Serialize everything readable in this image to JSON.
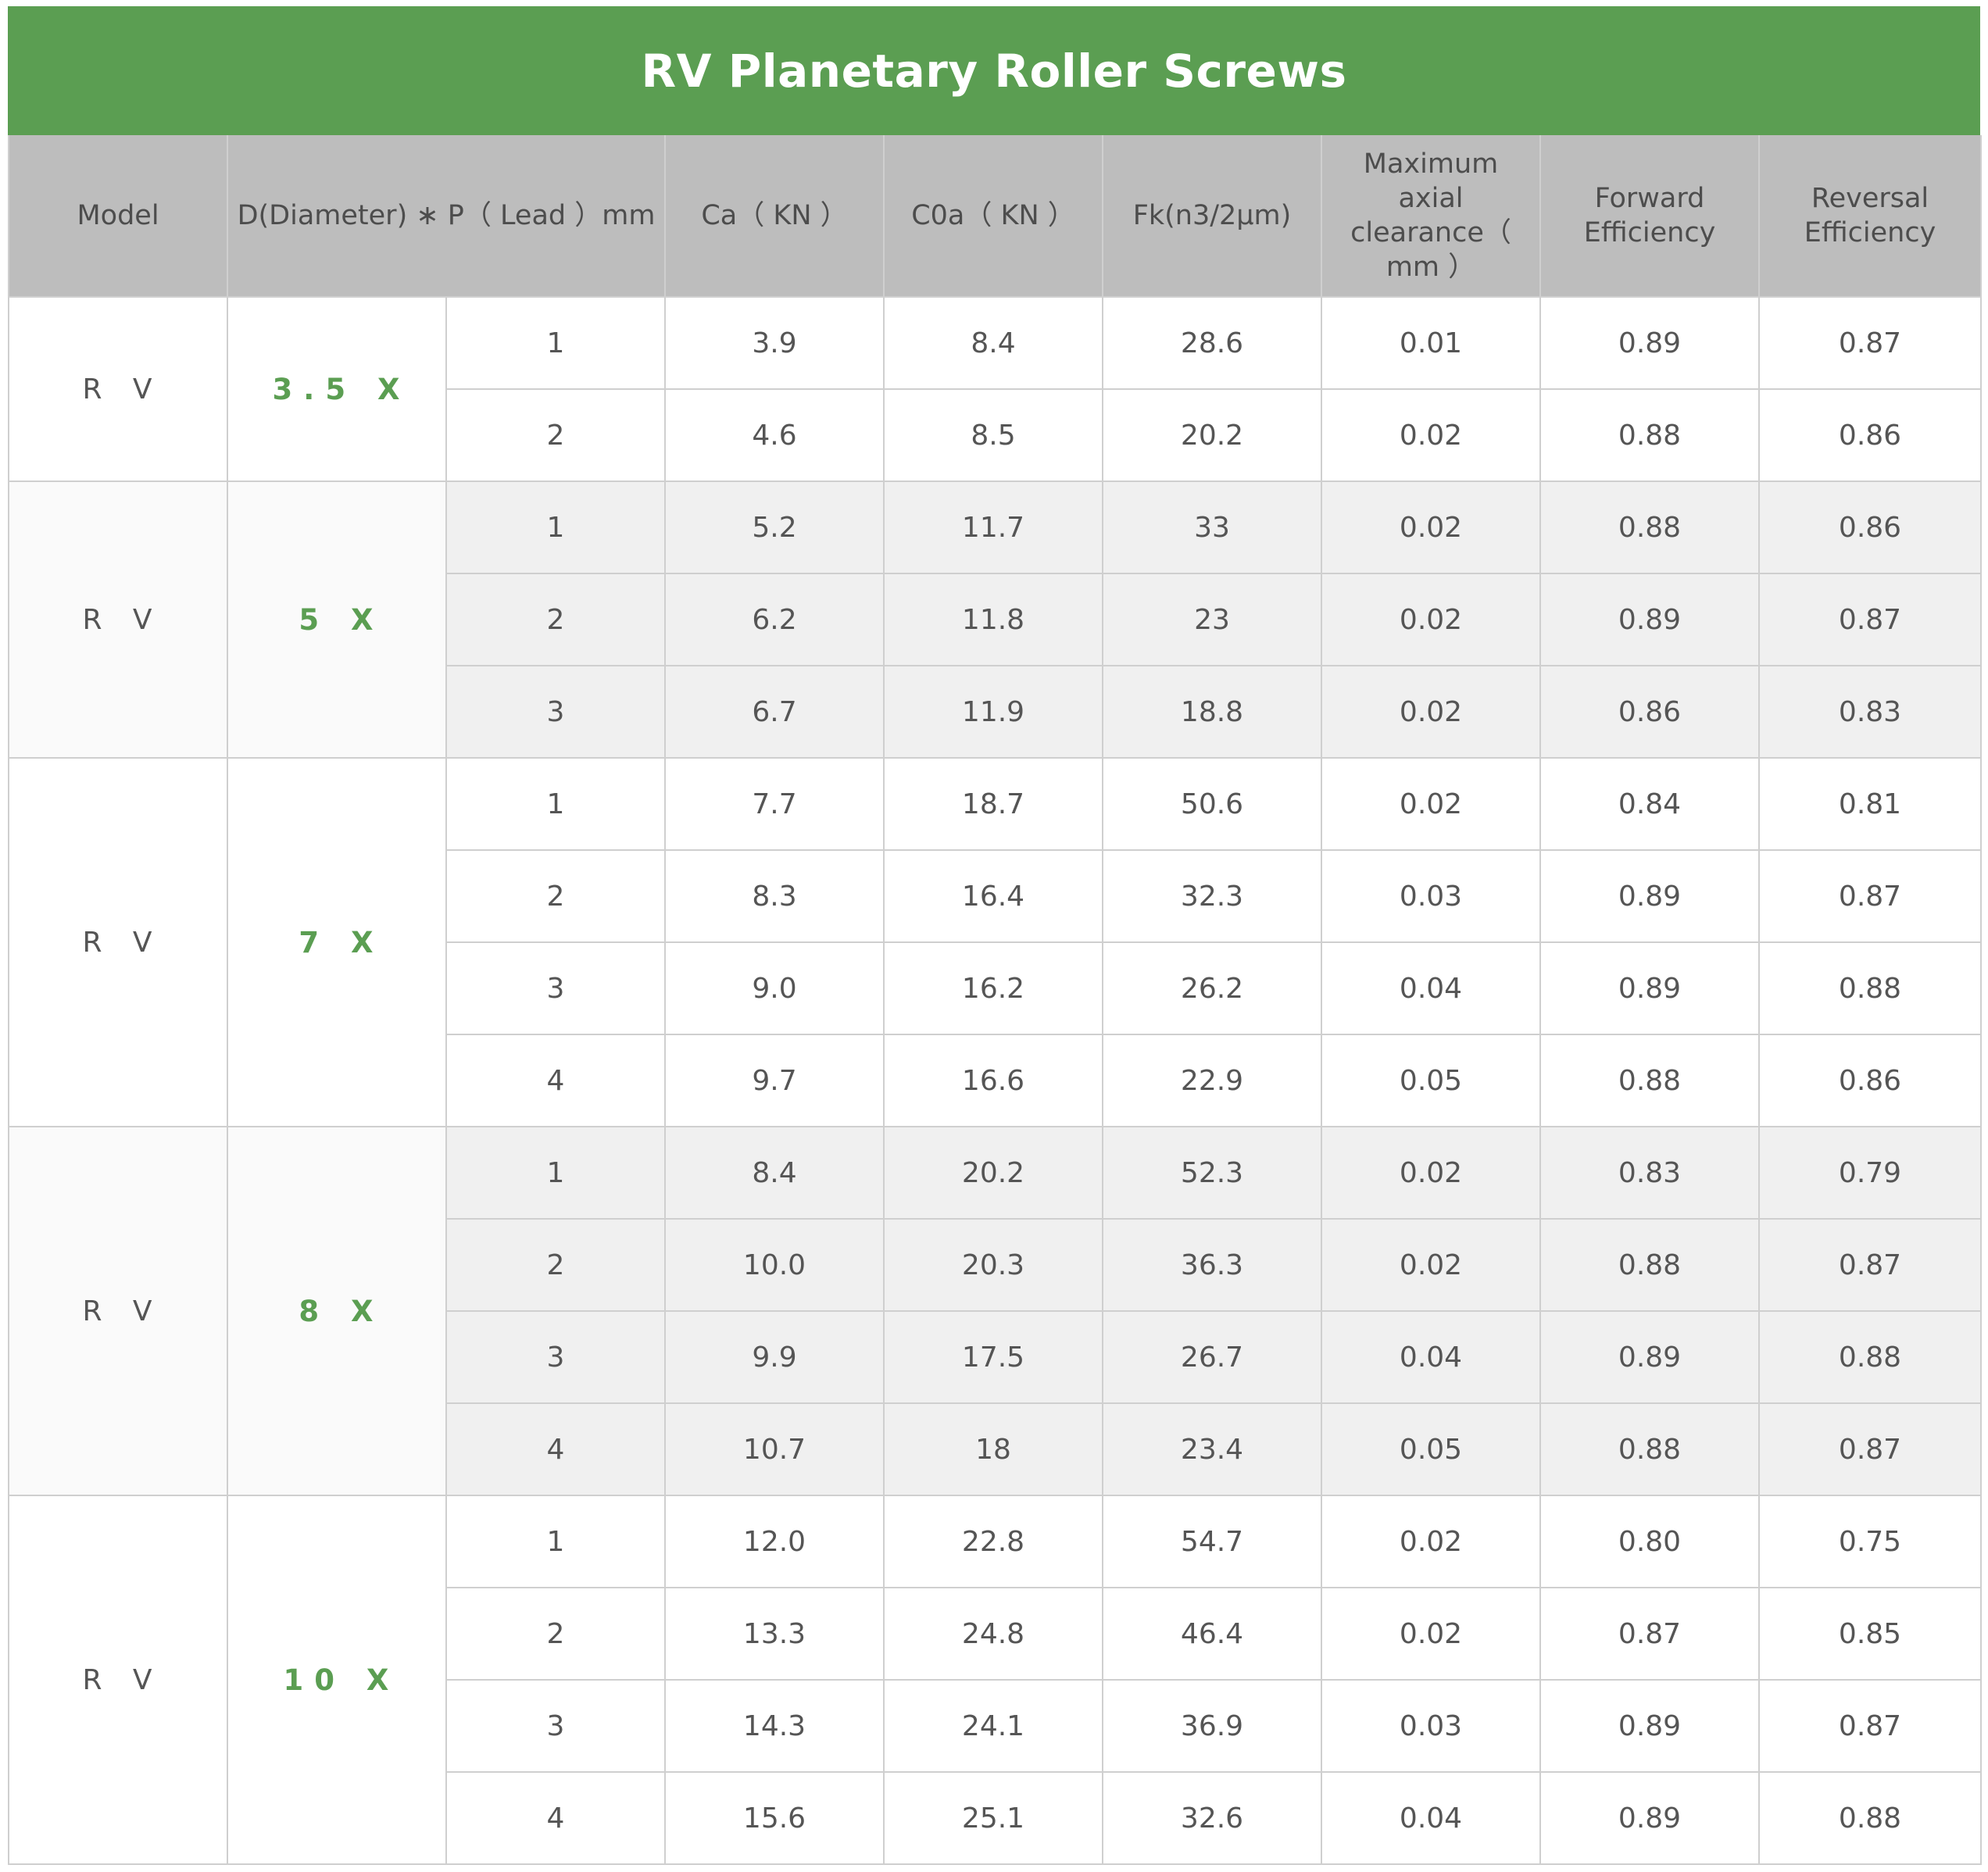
{
  "title": "RV Planetary Roller Screws",
  "headers": {
    "model": "Model",
    "dp": "D(Diameter) ∗ P（ Lead ）mm",
    "ca": "Ca（ KN ）",
    "c0a": "C0a（ KN ）",
    "fk": "Fk(n3/2μm)",
    "max_clearance": "Maximum axial clearance（ mm ）",
    "forward": "Forward Efficiency",
    "reversal": "Reversal Efficiency"
  },
  "groups": [
    {
      "model": "R V",
      "diameter": "3.5 X",
      "shaded": false,
      "rows": [
        {
          "lead": "1",
          "ca": "3.9",
          "c0a": "8.4",
          "fk": "28.6",
          "clearance": "0.01",
          "forward": "0.89",
          "reversal": "0.87"
        },
        {
          "lead": "2",
          "ca": "4.6",
          "c0a": "8.5",
          "fk": "20.2",
          "clearance": "0.02",
          "forward": "0.88",
          "reversal": "0.86"
        }
      ]
    },
    {
      "model": "R V",
      "diameter": "5 X",
      "shaded": true,
      "rows": [
        {
          "lead": "1",
          "ca": "5.2",
          "c0a": "11.7",
          "fk": "33",
          "clearance": "0.02",
          "forward": "0.88",
          "reversal": "0.86"
        },
        {
          "lead": "2",
          "ca": "6.2",
          "c0a": "11.8",
          "fk": "23",
          "clearance": "0.02",
          "forward": "0.89",
          "reversal": "0.87"
        },
        {
          "lead": "3",
          "ca": "6.7",
          "c0a": "11.9",
          "fk": "18.8",
          "clearance": "0.02",
          "forward": "0.86",
          "reversal": "0.83"
        }
      ]
    },
    {
      "model": "R V",
      "diameter": "7 X",
      "shaded": false,
      "rows": [
        {
          "lead": "1",
          "ca": "7.7",
          "c0a": "18.7",
          "fk": "50.6",
          "clearance": "0.02",
          "forward": "0.84",
          "reversal": "0.81"
        },
        {
          "lead": "2",
          "ca": "8.3",
          "c0a": "16.4",
          "fk": "32.3",
          "clearance": "0.03",
          "forward": "0.89",
          "reversal": "0.87"
        },
        {
          "lead": "3",
          "ca": "9.0",
          "c0a": "16.2",
          "fk": "26.2",
          "clearance": "0.04",
          "forward": "0.89",
          "reversal": "0.88"
        },
        {
          "lead": "4",
          "ca": "9.7",
          "c0a": "16.6",
          "fk": "22.9",
          "clearance": "0.05",
          "forward": "0.88",
          "reversal": "0.86"
        }
      ]
    },
    {
      "model": "R V",
      "diameter": "8 X",
      "shaded": true,
      "rows": [
        {
          "lead": "1",
          "ca": "8.4",
          "c0a": "20.2",
          "fk": "52.3",
          "clearance": "0.02",
          "forward": "0.83",
          "reversal": "0.79"
        },
        {
          "lead": "2",
          "ca": "10.0",
          "c0a": "20.3",
          "fk": "36.3",
          "clearance": "0.02",
          "forward": "0.88",
          "reversal": "0.87"
        },
        {
          "lead": "3",
          "ca": "9.9",
          "c0a": "17.5",
          "fk": "26.7",
          "clearance": "0.04",
          "forward": "0.89",
          "reversal": "0.88"
        },
        {
          "lead": "4",
          "ca": "10.7",
          "c0a": "18",
          "fk": "23.4",
          "clearance": "0.05",
          "forward": "0.88",
          "reversal": "0.87"
        }
      ]
    },
    {
      "model": "R V",
      "diameter": "10 X",
      "shaded": false,
      "rows": [
        {
          "lead": "1",
          "ca": "12.0",
          "c0a": "22.8",
          "fk": "54.7",
          "clearance": "0.02",
          "forward": "0.80",
          "reversal": "0.75"
        },
        {
          "lead": "2",
          "ca": "13.3",
          "c0a": "24.8",
          "fk": "46.4",
          "clearance": "0.02",
          "forward": "0.87",
          "reversal": "0.85"
        },
        {
          "lead": "3",
          "ca": "14.3",
          "c0a": "24.1",
          "fk": "36.9",
          "clearance": "0.03",
          "forward": "0.89",
          "reversal": "0.87"
        },
        {
          "lead": "4",
          "ca": "15.6",
          "c0a": "25.1",
          "fk": "32.6",
          "clearance": "0.04",
          "forward": "0.89",
          "reversal": "0.88"
        }
      ]
    }
  ],
  "colors": {
    "title_bg": "#5b9e52",
    "header_bg": "#bdbdbd",
    "accent_text": "#5b9e52",
    "shaded_row": "#f0f0f0"
  }
}
